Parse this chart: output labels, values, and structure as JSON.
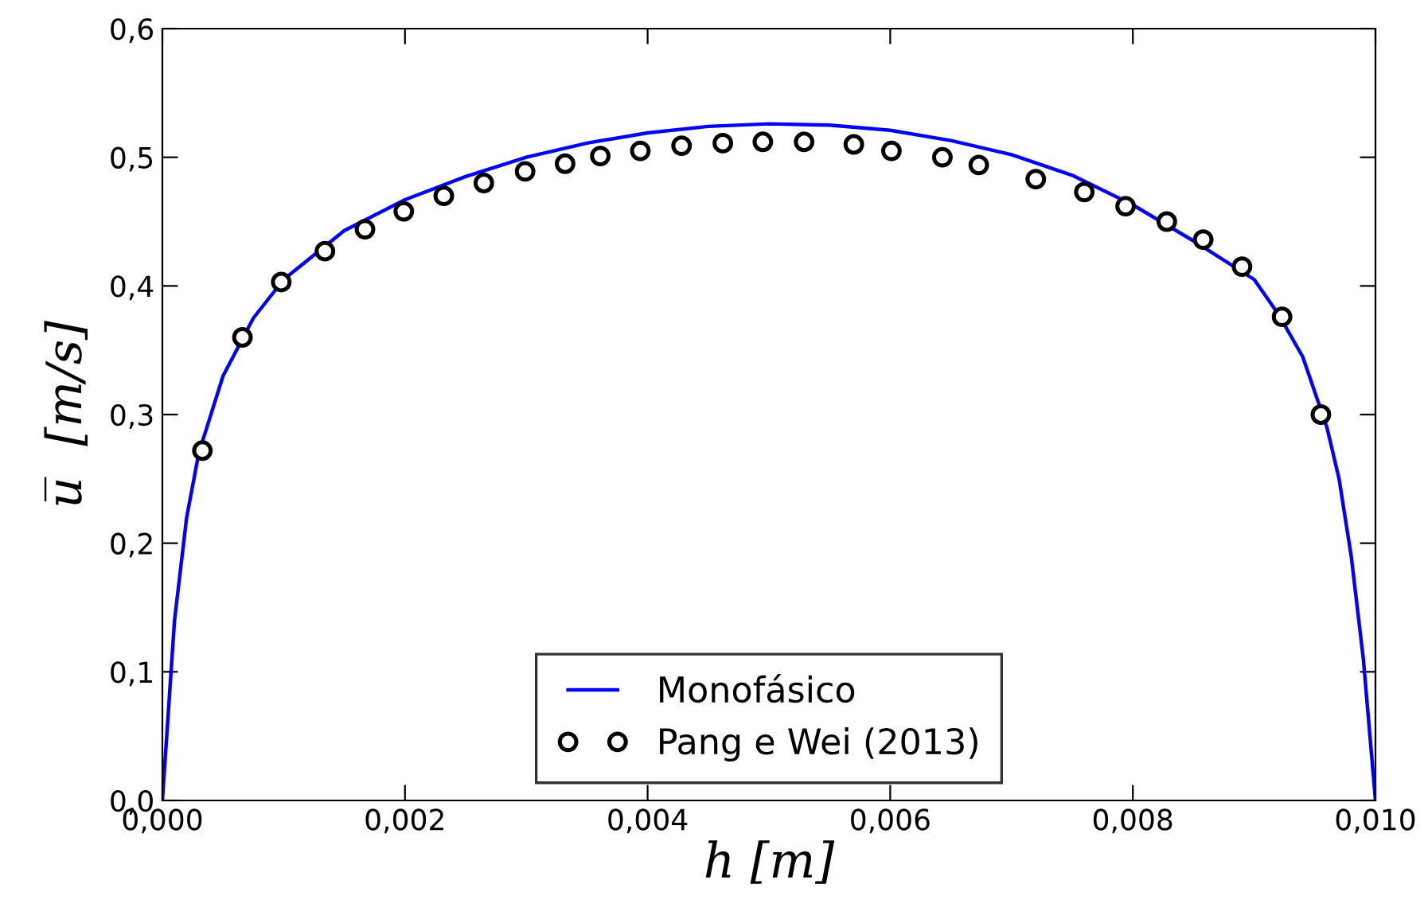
{
  "chart_data": {
    "type": "line",
    "xlabel": "h [m]",
    "ylabel": "u̅  [m/s]",
    "xlim": [
      0,
      0.01
    ],
    "ylim": [
      0,
      0.6
    ],
    "xticks": [
      {
        "value": 0,
        "label": "0,000"
      },
      {
        "value": 0.002,
        "label": "0,002"
      },
      {
        "value": 0.004,
        "label": "0,004"
      },
      {
        "value": 0.006,
        "label": "0,006"
      },
      {
        "value": 0.008,
        "label": "0,008"
      },
      {
        "value": 0.01,
        "label": "0,010"
      }
    ],
    "yticks": [
      {
        "value": 0,
        "label": "0,0"
      },
      {
        "value": 0.1,
        "label": "0,1"
      },
      {
        "value": 0.2,
        "label": "0,2"
      },
      {
        "value": 0.3,
        "label": "0,3"
      },
      {
        "value": 0.4,
        "label": "0,4"
      },
      {
        "value": 0.5,
        "label": "0,5"
      },
      {
        "value": 0.6,
        "label": "0,6"
      }
    ],
    "grid": false,
    "legend": "bottom",
    "series": [
      {
        "name": "Monofásico",
        "color": "#0000ff",
        "marker": "none",
        "line_style": "solid",
        "x": [
          0,
          0.0001,
          0.0002,
          0.0003,
          0.0005,
          0.00075,
          0.001,
          0.0015,
          0.002,
          0.0025,
          0.003,
          0.0035,
          0.004,
          0.0045,
          0.005,
          0.0055,
          0.006,
          0.0065,
          0.007,
          0.0075,
          0.008,
          0.0085,
          0.009,
          0.0092,
          0.0094,
          0.0096,
          0.0097,
          0.0098,
          0.0099,
          0.01
        ],
        "values": [
          0,
          0.14,
          0.22,
          0.27,
          0.33,
          0.375,
          0.405,
          0.443,
          0.467,
          0.485,
          0.5,
          0.511,
          0.519,
          0.524,
          0.526,
          0.525,
          0.521,
          0.513,
          0.502,
          0.486,
          0.463,
          0.435,
          0.405,
          0.378,
          0.345,
          0.29,
          0.25,
          0.19,
          0.11,
          0
        ]
      },
      {
        "name": "Pang e Wei (2013)",
        "type": "scatter",
        "color": "#000000",
        "marker": "circle",
        "x": [
          0.00033,
          0.00066,
          0.00098,
          0.00134,
          0.00167,
          0.00199,
          0.00232,
          0.00265,
          0.00299,
          0.00332,
          0.00361,
          0.00394,
          0.00428,
          0.00462,
          0.00495,
          0.00529,
          0.0057,
          0.00601,
          0.00643,
          0.00673,
          0.0072,
          0.0076,
          0.00794,
          0.00828,
          0.00858,
          0.0089,
          0.00923,
          0.00955
        ],
        "values": [
          0.272,
          0.36,
          0.403,
          0.427,
          0.444,
          0.458,
          0.47,
          0.48,
          0.489,
          0.495,
          0.501,
          0.505,
          0.509,
          0.511,
          0.512,
          0.512,
          0.51,
          0.505,
          0.5,
          0.494,
          0.483,
          0.473,
          0.462,
          0.45,
          0.436,
          0.415,
          0.376,
          0.3
        ]
      }
    ]
  }
}
